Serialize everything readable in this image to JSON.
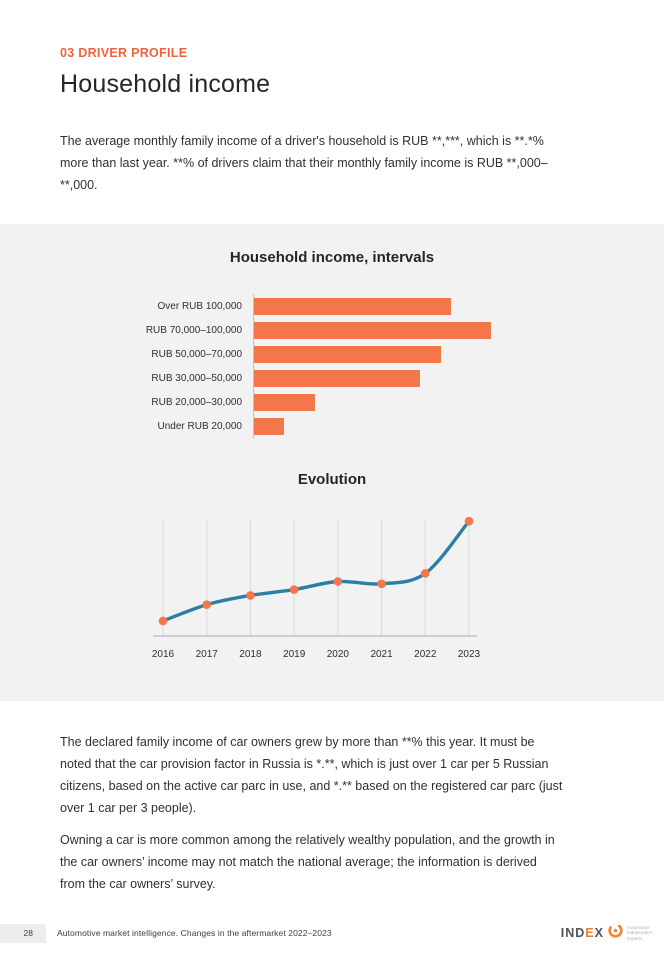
{
  "page": {
    "eyebrow": "03 DRIVER PROFILE",
    "title": "Household income"
  },
  "intro_paragraph": "The average monthly family income of a driver's household is RUB **,***, which is **.*% more than last year. **% of drivers claim that their monthly family income is RUB **,000–**,000.",
  "chart_data": [
    {
      "type": "bar",
      "orientation": "horizontal",
      "title": "Household income, intervals",
      "categories": [
        "Over RUB 100,000",
        "RUB 70,000–100,000",
        "RUB 50,000–70,000",
        "RUB 30,000–50,000",
        "RUB 20,000–30,000",
        "Under RUB 20,000"
      ],
      "values": [
        83,
        100,
        79,
        70,
        26,
        13
      ],
      "values_unit": "relative bar length, max = 100 (no numeric data labels shown)",
      "xlim": [
        0,
        100
      ],
      "grid": false,
      "bar_color": "#f4764a",
      "axis_color": "#c4c4c4"
    },
    {
      "type": "line",
      "title": "Evolution",
      "x": [
        "2016",
        "2017",
        "2018",
        "2019",
        "2020",
        "2021",
        "2022",
        "2023"
      ],
      "values": [
        13,
        27,
        35,
        40,
        47,
        45,
        54,
        99
      ],
      "values_unit": "relative height 0–100 (y-axis unlabeled in source)",
      "ylim": [
        0,
        100
      ],
      "grid": "vertical",
      "line_color": "#2c7ea2",
      "marker_color": "#f4764a"
    }
  ],
  "body_paragraphs": [
    "The declared family income of car owners grew by more than **% this year. It must be noted that the car provision factor in Russia is *.**, which is just over 1 car per 5 Russian citizens, based on the active car parc in use, and *.** based on the registered car parc (just over 1 car per 3 people).",
    "Owning a car is more common among the relatively wealthy population, and the growth in the car owners’ income may not match the national average; the information is derived from the car owners’ survey."
  ],
  "footer": {
    "page_number": "28",
    "text": "Automotive market intelligence. Changes in the aftermarket 2022–2023",
    "logo": {
      "word_parts": [
        "IND",
        "E",
        "X"
      ],
      "tagline": [
        "Automotive",
        "Independent",
        "Experts"
      ]
    }
  }
}
